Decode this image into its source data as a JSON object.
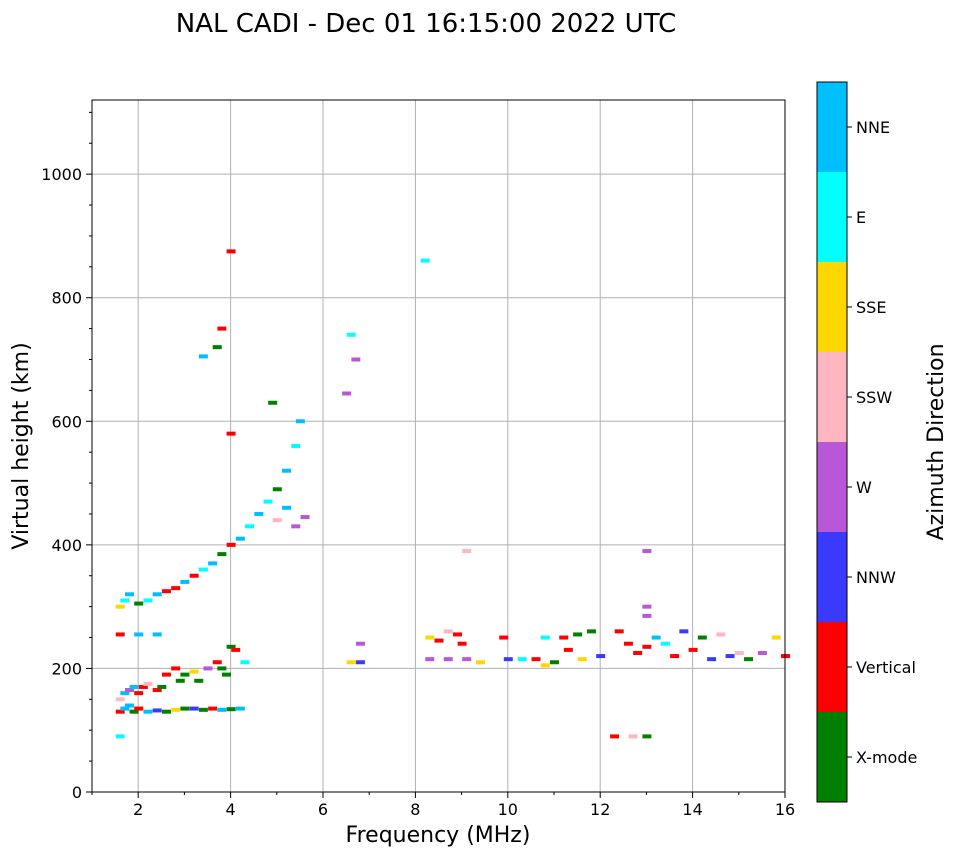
{
  "chart_data": {
    "type": "scatter",
    "title": "NAL CADI - Dec 01 16:15:00 2022 UTC",
    "xlabel": "Frequency (MHz)",
    "ylabel": "Virtual height (km)",
    "xlim": [
      1,
      16
    ],
    "ylim": [
      0,
      1120
    ],
    "xticks": [
      2,
      4,
      6,
      8,
      10,
      12,
      14,
      16
    ],
    "yticks": [
      0,
      200,
      400,
      600,
      800,
      1000
    ],
    "grid": true,
    "colorbar": {
      "title": "Azimuth Direction",
      "categories": [
        {
          "name": "X-mode",
          "color": "#008000"
        },
        {
          "name": "Vertical",
          "color": "#ff0000"
        },
        {
          "name": "NNW",
          "color": "#3a3aff"
        },
        {
          "name": "W",
          "color": "#b857d8"
        },
        {
          "name": "SSW",
          "color": "#ffb6c1"
        },
        {
          "name": "SSE",
          "color": "#ffd700"
        },
        {
          "name": "E",
          "color": "#00ffff"
        },
        {
          "name": "NNE",
          "color": "#00bfff"
        }
      ]
    },
    "points": [
      [
        1.6,
        90,
        "E"
      ],
      [
        1.6,
        130,
        "Vertical"
      ],
      [
        1.7,
        135,
        "NNE"
      ],
      [
        1.8,
        140,
        "NNE"
      ],
      [
        1.9,
        130,
        "X-mode"
      ],
      [
        2.0,
        135,
        "Vertical"
      ],
      [
        2.2,
        130,
        "NNE"
      ],
      [
        2.4,
        132,
        "NNW"
      ],
      [
        2.6,
        130,
        "X-mode"
      ],
      [
        2.8,
        133,
        "SSE"
      ],
      [
        3.0,
        135,
        "X-mode"
      ],
      [
        3.2,
        135,
        "NNW"
      ],
      [
        3.4,
        133,
        "X-mode"
      ],
      [
        3.6,
        135,
        "Vertical"
      ],
      [
        3.8,
        133,
        "NNE"
      ],
      [
        4.0,
        134,
        "X-mode"
      ],
      [
        4.2,
        135,
        "NNE"
      ],
      [
        1.6,
        150,
        "SSW"
      ],
      [
        1.7,
        160,
        "NNE"
      ],
      [
        1.8,
        165,
        "W"
      ],
      [
        1.9,
        170,
        "NNE"
      ],
      [
        2.0,
        160,
        "Vertical"
      ],
      [
        2.1,
        170,
        "Vertical"
      ],
      [
        2.2,
        175,
        "SSW"
      ],
      [
        2.4,
        165,
        "Vertical"
      ],
      [
        2.5,
        170,
        "X-mode"
      ],
      [
        2.6,
        190,
        "Vertical"
      ],
      [
        2.8,
        200,
        "Vertical"
      ],
      [
        2.9,
        180,
        "X-mode"
      ],
      [
        3.0,
        190,
        "X-mode"
      ],
      [
        3.2,
        195,
        "SSE"
      ],
      [
        3.3,
        180,
        "X-mode"
      ],
      [
        3.5,
        200,
        "W"
      ],
      [
        3.7,
        210,
        "Vertical"
      ],
      [
        3.8,
        200,
        "X-mode"
      ],
      [
        3.9,
        190,
        "X-mode"
      ],
      [
        4.0,
        235,
        "X-mode"
      ],
      [
        4.1,
        230,
        "Vertical"
      ],
      [
        4.3,
        210,
        "E"
      ],
      [
        1.6,
        255,
        "Vertical"
      ],
      [
        2.0,
        255,
        "NNE"
      ],
      [
        2.4,
        255,
        "NNE"
      ],
      [
        1.6,
        300,
        "SSE"
      ],
      [
        1.7,
        310,
        "E"
      ],
      [
        1.8,
        320,
        "NNE"
      ],
      [
        2.0,
        305,
        "X-mode"
      ],
      [
        2.2,
        310,
        "E"
      ],
      [
        2.4,
        320,
        "NNE"
      ],
      [
        2.6,
        325,
        "Vertical"
      ],
      [
        2.8,
        330,
        "Vertical"
      ],
      [
        3.0,
        340,
        "NNE"
      ],
      [
        3.2,
        350,
        "Vertical"
      ],
      [
        3.4,
        360,
        "E"
      ],
      [
        3.6,
        370,
        "NNE"
      ],
      [
        3.8,
        385,
        "X-mode"
      ],
      [
        4.0,
        400,
        "Vertical"
      ],
      [
        4.2,
        410,
        "NNE"
      ],
      [
        4.4,
        430,
        "E"
      ],
      [
        4.6,
        450,
        "NNE"
      ],
      [
        4.8,
        470,
        "E"
      ],
      [
        5.0,
        490,
        "X-mode"
      ],
      [
        5.2,
        520,
        "NNE"
      ],
      [
        5.4,
        560,
        "E"
      ],
      [
        5.5,
        600,
        "NNE"
      ],
      [
        5.0,
        440,
        "SSW"
      ],
      [
        5.2,
        460,
        "NNE"
      ],
      [
        5.4,
        430,
        "W"
      ],
      [
        5.6,
        445,
        "W"
      ],
      [
        4.9,
        630,
        "X-mode"
      ],
      [
        4.0,
        580,
        "Vertical"
      ],
      [
        3.8,
        750,
        "Vertical"
      ],
      [
        3.7,
        720,
        "X-mode"
      ],
      [
        3.4,
        705,
        "NNE"
      ],
      [
        4.0,
        875,
        "Vertical"
      ],
      [
        6.5,
        645,
        "W"
      ],
      [
        6.6,
        740,
        "E"
      ],
      [
        6.7,
        700,
        "W"
      ],
      [
        6.6,
        210,
        "SSE"
      ],
      [
        6.8,
        210,
        "NNW"
      ],
      [
        6.8,
        240,
        "W"
      ],
      [
        8.2,
        860,
        "E"
      ],
      [
        9.1,
        390,
        "SSW"
      ],
      [
        13.0,
        390,
        "W"
      ],
      [
        8.3,
        250,
        "SSE"
      ],
      [
        8.5,
        245,
        "Vertical"
      ],
      [
        8.7,
        260,
        "SSW"
      ],
      [
        8.9,
        255,
        "Vertical"
      ],
      [
        9.0,
        240,
        "Vertical"
      ],
      [
        8.3,
        215,
        "W"
      ],
      [
        8.7,
        215,
        "W"
      ],
      [
        9.1,
        215,
        "W"
      ],
      [
        9.4,
        210,
        "SSE"
      ],
      [
        9.9,
        250,
        "Vertical"
      ],
      [
        10.0,
        215,
        "NNW"
      ],
      [
        10.3,
        215,
        "E"
      ],
      [
        10.6,
        215,
        "Vertical"
      ],
      [
        10.8,
        205,
        "SSE"
      ],
      [
        10.8,
        250,
        "E"
      ],
      [
        11.0,
        210,
        "X-mode"
      ],
      [
        11.2,
        250,
        "Vertical"
      ],
      [
        11.3,
        230,
        "Vertical"
      ],
      [
        11.5,
        255,
        "X-mode"
      ],
      [
        11.6,
        215,
        "SSE"
      ],
      [
        11.8,
        260,
        "X-mode"
      ],
      [
        12.0,
        220,
        "NNW"
      ],
      [
        12.4,
        260,
        "Vertical"
      ],
      [
        12.6,
        240,
        "Vertical"
      ],
      [
        12.8,
        225,
        "Vertical"
      ],
      [
        13.0,
        235,
        "Vertical"
      ],
      [
        13.2,
        250,
        "NNE"
      ],
      [
        13.4,
        240,
        "E"
      ],
      [
        13.6,
        220,
        "Vertical"
      ],
      [
        13.8,
        260,
        "NNW"
      ],
      [
        14.0,
        230,
        "Vertical"
      ],
      [
        14.2,
        250,
        "X-mode"
      ],
      [
        14.4,
        215,
        "NNW"
      ],
      [
        14.6,
        255,
        "SSW"
      ],
      [
        14.8,
        220,
        "NNW"
      ],
      [
        15.0,
        225,
        "SSW"
      ],
      [
        15.2,
        215,
        "X-mode"
      ],
      [
        15.5,
        225,
        "W"
      ],
      [
        15.8,
        250,
        "SSE"
      ],
      [
        16.0,
        220,
        "Vertical"
      ],
      [
        13.0,
        285,
        "W"
      ],
      [
        13.0,
        300,
        "W"
      ],
      [
        12.3,
        90,
        "Vertical"
      ],
      [
        12.7,
        90,
        "SSW"
      ],
      [
        13.0,
        90,
        "X-mode"
      ]
    ]
  }
}
